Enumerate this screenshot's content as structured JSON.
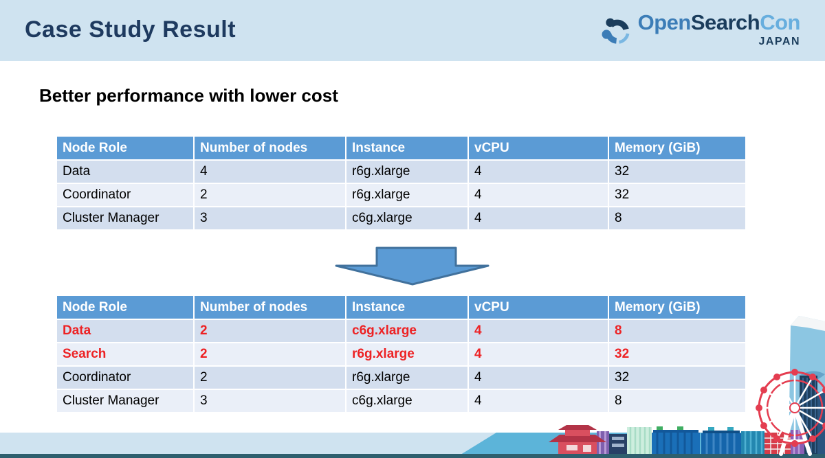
{
  "slide": {
    "title": "Case Study Result",
    "subtitle": "Better performance with lower cost",
    "logo": {
      "brand_open": "Open",
      "brand_search": "Search",
      "brand_con": "Con",
      "country": "JAPAN"
    }
  },
  "tables": {
    "columns": [
      "Node Role",
      "Number of nodes",
      "Instance",
      "vCPU",
      "Memory (GiB)"
    ],
    "before": {
      "rows": [
        {
          "cells": [
            "Data",
            "4",
            "r6g.xlarge",
            "4",
            "32"
          ],
          "highlight": false
        },
        {
          "cells": [
            "Coordinator",
            "2",
            "r6g.xlarge",
            "4",
            "32"
          ],
          "highlight": false
        },
        {
          "cells": [
            "Cluster Manager",
            "3",
            "c6g.xlarge",
            "4",
            "8"
          ],
          "highlight": false
        }
      ]
    },
    "after": {
      "rows": [
        {
          "cells": [
            "Data",
            "2",
            "c6g.xlarge",
            "4",
            "8"
          ],
          "highlight": true
        },
        {
          "cells": [
            "Search",
            "2",
            "r6g.xlarge",
            "4",
            "32"
          ],
          "highlight": true
        },
        {
          "cells": [
            "Coordinator",
            "2",
            "r6g.xlarge",
            "4",
            "32"
          ],
          "highlight": false
        },
        {
          "cells": [
            "Cluster Manager",
            "3",
            "c6g.xlarge",
            "4",
            "8"
          ],
          "highlight": false
        }
      ]
    }
  },
  "icons": {
    "arrow": "block-arrow-down",
    "logo_mark": "opensearch-swirl",
    "decor": "japan-cityscape-fuji-ferris-wheel"
  },
  "colors": {
    "header_band": "#cfe3f0",
    "title_navy": "#1e3a5f",
    "table_header_blue": "#5b9bd5",
    "row_dark": "#d3deee",
    "row_light": "#eaeff8",
    "highlight_red": "#ed2224",
    "arrow_fill": "#5b9bd5",
    "arrow_border": "#41719c"
  }
}
